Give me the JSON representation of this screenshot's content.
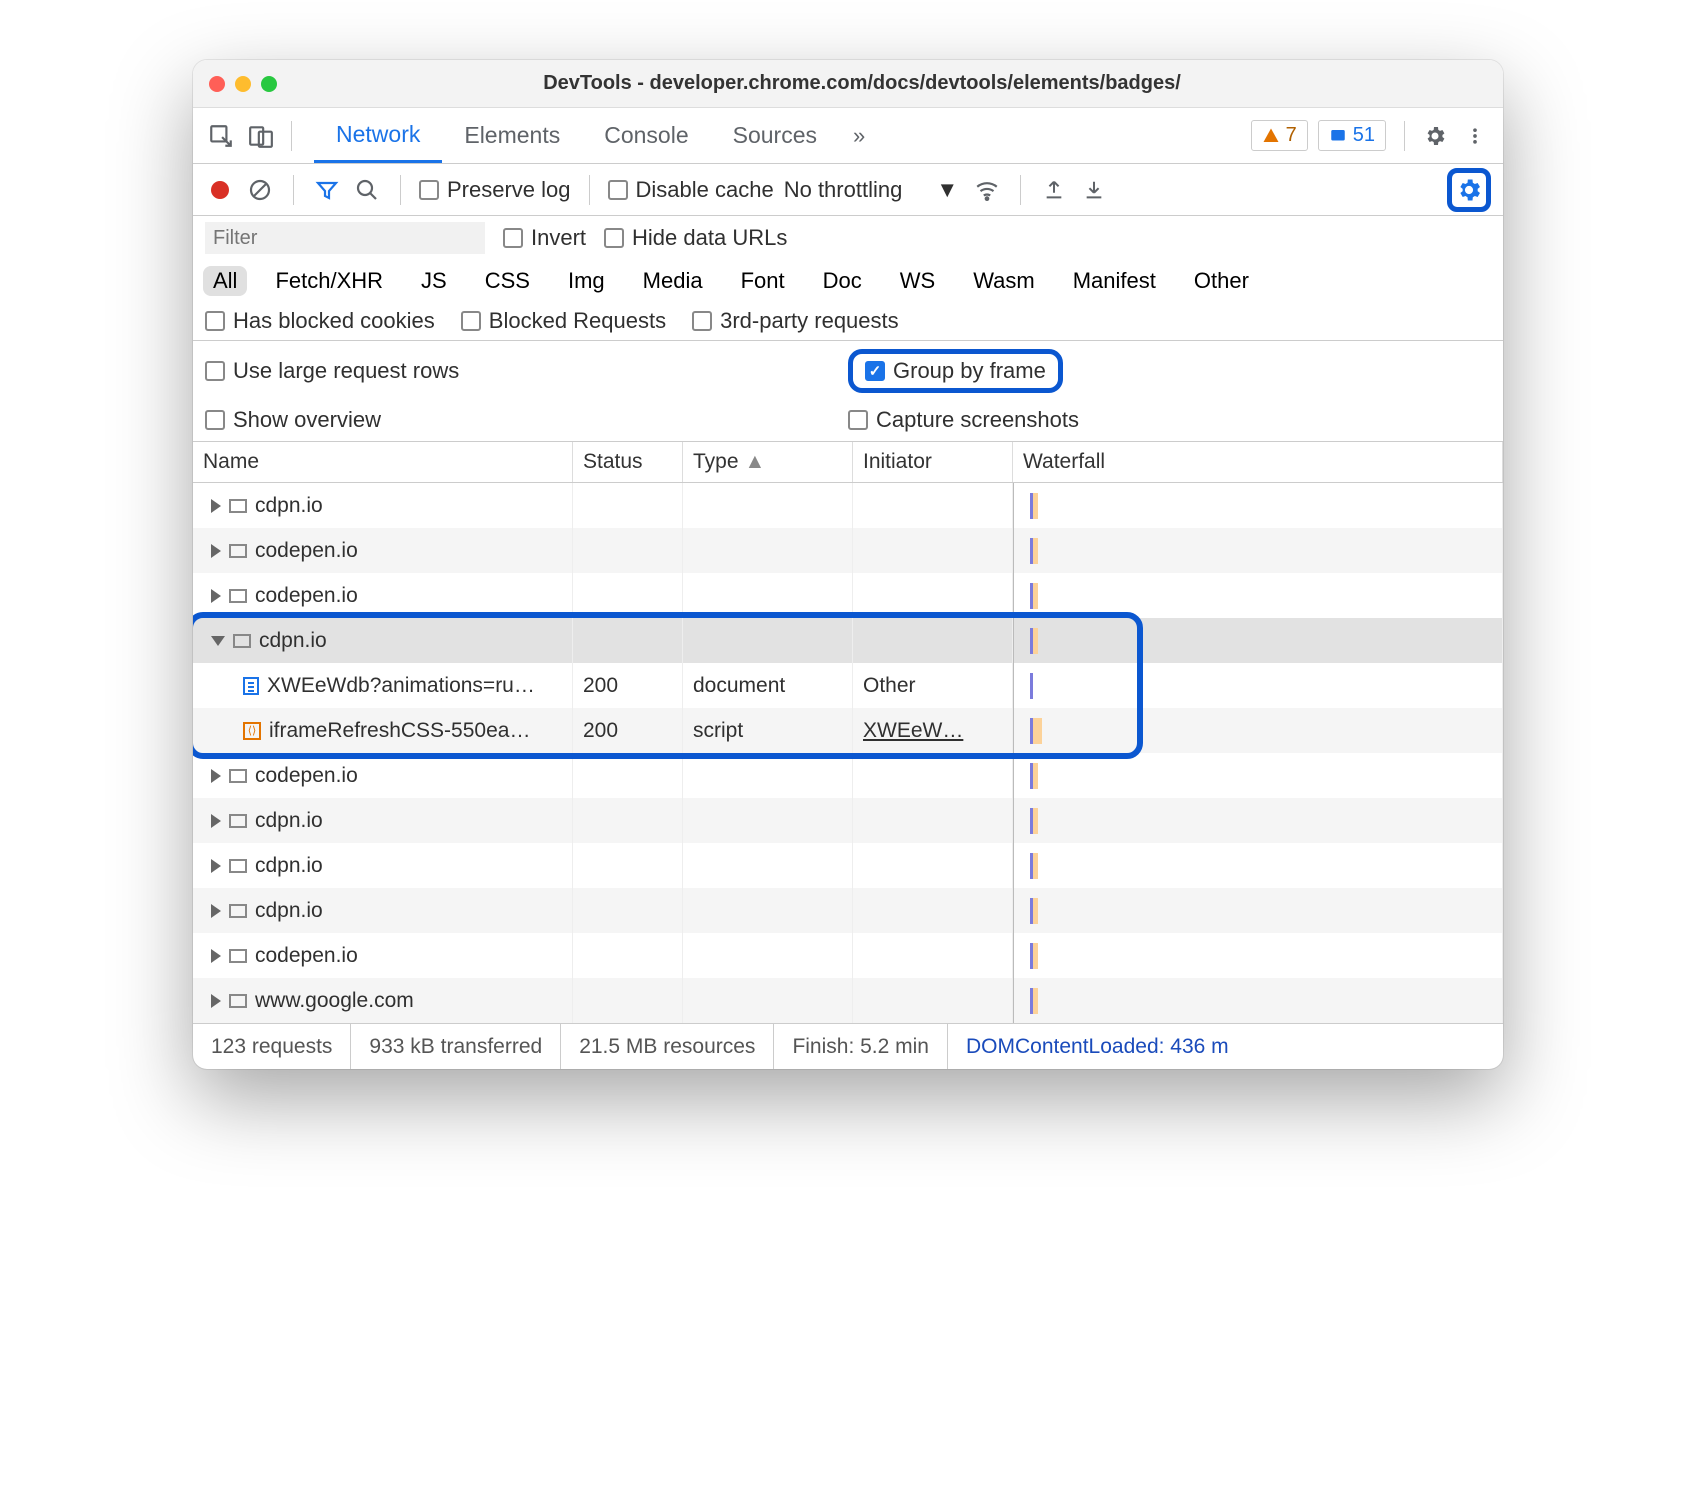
{
  "window": {
    "title": "DevTools - developer.chrome.com/docs/devtools/elements/badges/"
  },
  "tabs": {
    "active": "Network",
    "others": [
      "Elements",
      "Console",
      "Sources"
    ],
    "more": "»"
  },
  "badges": {
    "warn_count": "7",
    "info_count": "51"
  },
  "netbar": {
    "preserve_log": "Preserve log",
    "disable_cache": "Disable cache",
    "throttling": "No throttling"
  },
  "filter": {
    "placeholder": "Filter",
    "invert": "Invert",
    "hide_data_urls": "Hide data URLs"
  },
  "types": [
    "All",
    "Fetch/XHR",
    "JS",
    "CSS",
    "Img",
    "Media",
    "Font",
    "Doc",
    "WS",
    "Wasm",
    "Manifest",
    "Other"
  ],
  "checks": {
    "blocked_cookies": "Has blocked cookies",
    "blocked_requests": "Blocked Requests",
    "third_party": "3rd-party requests"
  },
  "settings": {
    "large_rows": "Use large request rows",
    "group_by_frame": "Group by frame",
    "show_overview": "Show overview",
    "capture_screenshots": "Capture screenshots"
  },
  "columns": {
    "name": "Name",
    "status": "Status",
    "type": "Type",
    "initiator": "Initiator",
    "waterfall": "Waterfall"
  },
  "rows": [
    {
      "kind": "frame",
      "expanded": false,
      "label": "cdpn.io"
    },
    {
      "kind": "frame",
      "expanded": false,
      "label": "codepen.io"
    },
    {
      "kind": "frame",
      "expanded": false,
      "label": "codepen.io"
    },
    {
      "kind": "frame",
      "expanded": true,
      "label": "cdpn.io",
      "selected": true
    },
    {
      "kind": "req",
      "icon": "doc",
      "name": "XWEeWdb?animations=ru…",
      "status": "200",
      "type": "document",
      "initiator": "Other",
      "wf": "thin"
    },
    {
      "kind": "req",
      "icon": "script",
      "name": "iframeRefreshCSS-550ea…",
      "status": "200",
      "type": "script",
      "initiator": "XWEeW…",
      "initiator_link": true,
      "wf": "bar"
    },
    {
      "kind": "frame",
      "expanded": false,
      "label": "codepen.io"
    },
    {
      "kind": "frame",
      "expanded": false,
      "label": "cdpn.io"
    },
    {
      "kind": "frame",
      "expanded": false,
      "label": "cdpn.io"
    },
    {
      "kind": "frame",
      "expanded": false,
      "label": "cdpn.io"
    },
    {
      "kind": "frame",
      "expanded": false,
      "label": "codepen.io"
    },
    {
      "kind": "frame",
      "expanded": false,
      "label": "www.google.com"
    }
  ],
  "status": {
    "requests": "123 requests",
    "transferred": "933 kB transferred",
    "resources": "21.5 MB resources",
    "finish": "Finish: 5.2 min",
    "dcl": "DOMContentLoaded: 436 m"
  },
  "colors": {
    "accent": "#1a73e8",
    "highlight": "#0b57d0",
    "warn": "#e37400",
    "record": "#d93025",
    "waterfall_bar": "#fcd299",
    "waterfall_line": "#7b7bdc"
  }
}
